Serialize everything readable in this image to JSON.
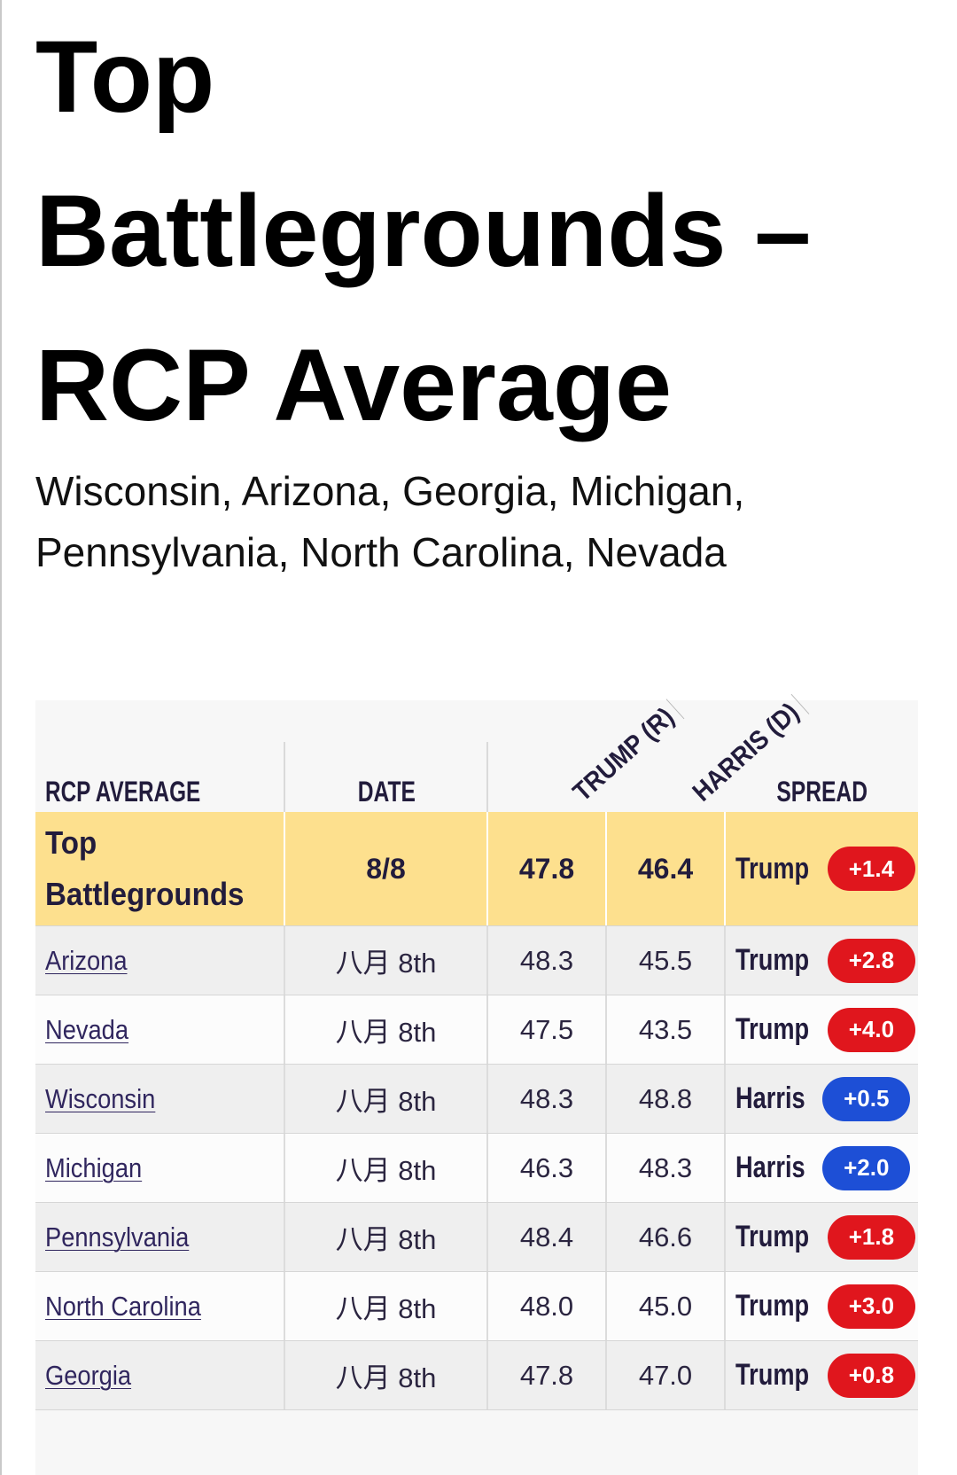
{
  "page": {
    "title": "Top Battlegrounds – RCP Average",
    "subtitle": "Wisconsin, Arizona, Georgia, Michigan, Pennsylvania, North Carolina, Nevada"
  },
  "colors": {
    "highlight_row": "#fde08e",
    "trump_badge": "#e0161d",
    "harris_badge": "#1d4fd6"
  },
  "table": {
    "headers": {
      "name": "RCP AVERAGE",
      "date": "DATE",
      "trump": "TRUMP (R)",
      "harris": "HARRIS (D)",
      "spread": "SPREAD"
    },
    "summary": {
      "name": "Top Battlegrounds",
      "date": "8/8",
      "trump": "47.8",
      "harris": "46.4",
      "leader": "Trump",
      "spread": "+1.4",
      "badge_color": "#e0161d"
    },
    "rows": [
      {
        "state": "Arizona",
        "date": "八月 8th",
        "trump": "48.3",
        "harris": "45.5",
        "leader": "Trump",
        "spread": "+2.8",
        "badge_color": "#e0161d"
      },
      {
        "state": "Nevada",
        "date": "八月 8th",
        "trump": "47.5",
        "harris": "43.5",
        "leader": "Trump",
        "spread": "+4.0",
        "badge_color": "#e0161d"
      },
      {
        "state": "Wisconsin",
        "date": "八月 8th",
        "trump": "48.3",
        "harris": "48.8",
        "leader": "Harris",
        "spread": "+0.5",
        "badge_color": "#1d4fd6"
      },
      {
        "state": "Michigan",
        "date": "八月 8th",
        "trump": "46.3",
        "harris": "48.3",
        "leader": "Harris",
        "spread": "+2.0",
        "badge_color": "#1d4fd6"
      },
      {
        "state": "Pennsylvania",
        "date": "八月 8th",
        "trump": "48.4",
        "harris": "46.6",
        "leader": "Trump",
        "spread": "+1.8",
        "badge_color": "#e0161d"
      },
      {
        "state": "North Carolina",
        "date": "八月 8th",
        "trump": "48.0",
        "harris": "45.0",
        "leader": "Trump",
        "spread": "+3.0",
        "badge_color": "#e0161d"
      },
      {
        "state": "Georgia",
        "date": "八月 8th",
        "trump": "47.8",
        "harris": "47.0",
        "leader": "Trump",
        "spread": "+0.8",
        "badge_color": "#e0161d"
      }
    ]
  }
}
